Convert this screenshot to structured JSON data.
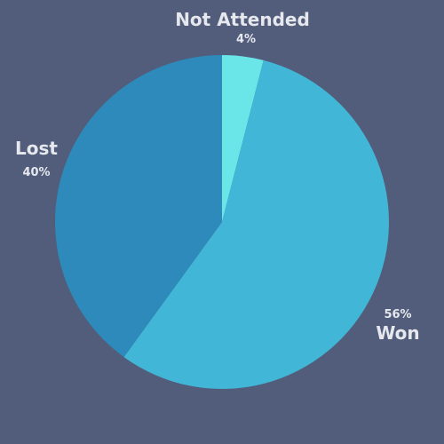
{
  "chart_data": {
    "type": "pie",
    "title": "",
    "slices": [
      {
        "label": "Not Attended",
        "value": 4,
        "percent_label": "4%",
        "color": "#6ae6e8"
      },
      {
        "label": "Won",
        "value": 56,
        "percent_label": "56%",
        "color": "#42b6d6"
      },
      {
        "label": "Lost",
        "value": 40,
        "percent_label": "40%",
        "color": "#2e8aba"
      }
    ],
    "start_angle": "12 o'clock",
    "direction": "clockwise",
    "legend": "none",
    "background_color": "#515d7b",
    "label_color": "#e6e8ee"
  }
}
